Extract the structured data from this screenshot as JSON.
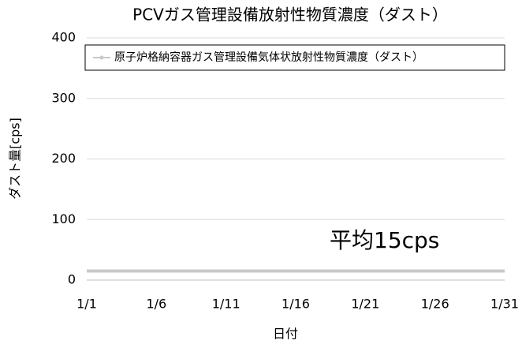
{
  "chart_data": {
    "type": "line",
    "title": "PCVガス管理設備放射性物質濃度（ダスト）",
    "xlabel": "日付",
    "ylabel": "ダスト量[cps]",
    "annotation": "平均15cps",
    "categories": [
      "1/1",
      null,
      null,
      null,
      null,
      "1/6",
      null,
      null,
      null,
      null,
      "1/11",
      null,
      null,
      null,
      null,
      "1/16",
      null,
      null,
      null,
      null,
      "1/21",
      null,
      null,
      null,
      null,
      "1/26",
      null,
      null,
      null,
      null,
      "1/31"
    ],
    "series": [
      {
        "name": "原子炉格納容器ガス管理設備気体状放射性物質濃度（ダスト）",
        "color": "#c8c8c8",
        "values": [
          15,
          15,
          15,
          15,
          15,
          15,
          15,
          15,
          15,
          15,
          15,
          15,
          15,
          15,
          15,
          15,
          15,
          15,
          15,
          15,
          15,
          15,
          15,
          15,
          15,
          15,
          15,
          15,
          15,
          15,
          15
        ]
      }
    ],
    "ylim": [
      0,
      400
    ],
    "yticks": [
      0,
      100,
      200,
      300,
      400
    ],
    "grid": true,
    "legend": "top"
  }
}
